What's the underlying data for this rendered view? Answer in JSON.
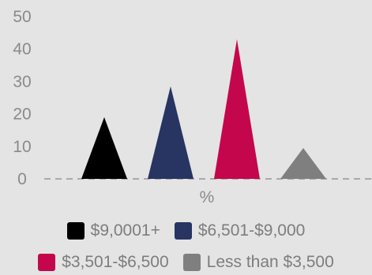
{
  "chart_data": {
    "type": "bar",
    "bar_shape": "triangle",
    "categories": [
      "$9,0001+",
      "$6,501-$9,000",
      "$3,501-$6,500",
      "Less than $3,500"
    ],
    "series": [
      {
        "values": [
          19,
          28.5,
          43,
          9.5
        ]
      }
    ],
    "colors": [
      "#000000",
      "#283462",
      "#c4074c",
      "#7f7f7f"
    ],
    "xlabel": "%",
    "ylabel": "",
    "ylim": [
      0,
      50
    ],
    "yticks": [
      "0",
      "10",
      "20",
      "30",
      "40",
      "50"
    ],
    "grid": false,
    "baseline": "dashed",
    "legend": {
      "position": "bottom",
      "entries": [
        "$9,0001+",
        "$6,501-$9,000",
        "$3,501-$6,500",
        "Less than $3,500"
      ]
    }
  }
}
